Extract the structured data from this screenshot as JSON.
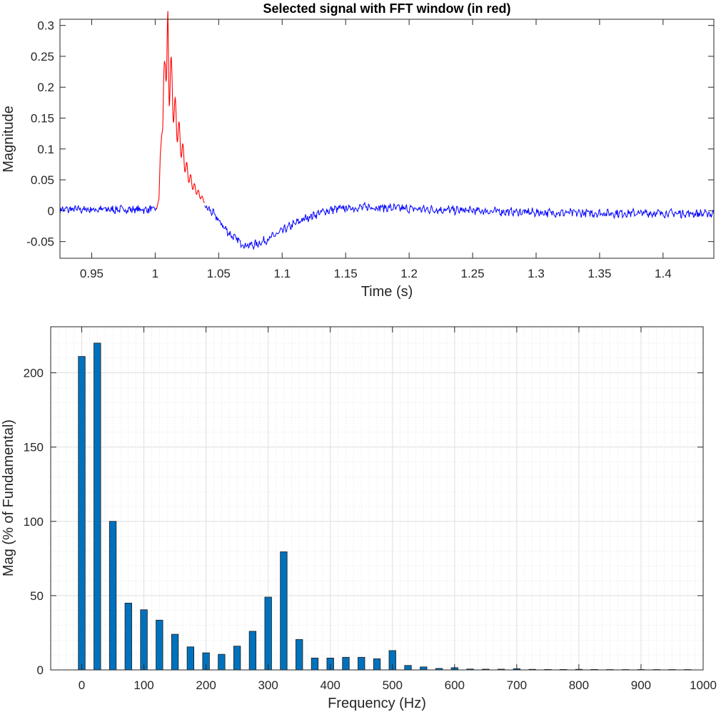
{
  "chart_data": [
    {
      "type": "line",
      "title": "Selected signal with FFT window (in red)",
      "xlabel": "Time (s)",
      "ylabel": "Magnitude",
      "xlim": [
        0.925,
        1.44
      ],
      "ylim": [
        -0.077,
        0.31
      ],
      "xticks": [
        "0.95",
        "1",
        "1.05",
        "1.1",
        "1.15",
        "1.2",
        "1.25",
        "1.3",
        "1.35",
        "1.4"
      ],
      "xtick_values": [
        0.95,
        1.0,
        1.05,
        1.1,
        1.15,
        1.2,
        1.25,
        1.3,
        1.35,
        1.4
      ],
      "yticks": [
        "-0.05",
        "0",
        "0.05",
        "0.1",
        "0.15",
        "0.2",
        "0.25",
        "0.3"
      ],
      "ytick_values": [
        -0.05,
        0,
        0.05,
        0.1,
        0.15,
        0.2,
        0.25,
        0.3
      ],
      "grid": false,
      "series": [
        {
          "color": "#0000ff",
          "x": [
            0.925,
            0.94,
            0.96,
            0.98,
            1.0,
            1.003,
            1.035,
            1.04,
            1.045,
            1.05,
            1.055,
            1.06,
            1.065,
            1.07,
            1.075,
            1.08,
            1.09,
            1.1,
            1.11,
            1.12,
            1.13,
            1.14,
            1.15,
            1.16,
            1.17,
            1.18,
            1.2,
            1.25,
            1.3,
            1.35,
            1.4,
            1.44
          ],
          "y": [
            0.002,
            0.002,
            0.002,
            0.002,
            0.002,
            0.002,
            0.012,
            0.006,
            -0.003,
            -0.016,
            -0.029,
            -0.04,
            -0.048,
            -0.055,
            -0.056,
            -0.054,
            -0.045,
            -0.033,
            -0.021,
            -0.011,
            -0.003,
            0.002,
            0.004,
            0.005,
            0.006,
            0.005,
            0.003,
            0.0,
            -0.003,
            -0.004,
            -0.004,
            -0.005
          ]
        },
        {
          "color": "#ff0000",
          "x": [
            1.001,
            1.003,
            1.004,
            1.005,
            1.006,
            1.007,
            1.008,
            1.009,
            1.01,
            1.011,
            1.012,
            1.013,
            1.014,
            1.015,
            1.017,
            1.02,
            1.023,
            1.026,
            1.03,
            1.035,
            1.039
          ],
          "y": [
            0.002,
            0.02,
            0.09,
            0.12,
            0.135,
            0.2,
            0.28,
            0.22,
            0.278,
            0.2,
            0.236,
            0.2,
            0.18,
            0.165,
            0.14,
            0.11,
            0.08,
            0.058,
            0.04,
            0.025,
            0.015
          ]
        }
      ]
    },
    {
      "type": "bar",
      "title": "",
      "xlabel": "Frequency (Hz)",
      "ylabel": "Mag (% of Fundamental)",
      "xlim": [
        -50,
        1000
      ],
      "ylim": [
        0,
        231
      ],
      "xticks": [
        "0",
        "100",
        "200",
        "300",
        "400",
        "500",
        "600",
        "700",
        "800",
        "900",
        "1000"
      ],
      "xtick_values": [
        0,
        100,
        200,
        300,
        400,
        500,
        600,
        700,
        800,
        900,
        1000
      ],
      "yticks": [
        "0",
        "50",
        "100",
        "150",
        "200"
      ],
      "ytick_values": [
        0,
        50,
        100,
        150,
        200
      ],
      "grid": true,
      "minor_grid": true,
      "color": "#0072bd",
      "x": [
        0,
        25,
        50,
        75,
        100,
        125,
        150,
        175,
        200,
        225,
        250,
        275,
        300,
        325,
        350,
        375,
        400,
        425,
        450,
        475,
        500,
        525,
        550,
        575,
        600,
        625,
        650,
        675,
        700,
        725,
        750,
        775,
        800,
        825,
        850,
        875,
        900,
        925,
        950,
        975
      ],
      "values": [
        211,
        220,
        100,
        45,
        40.5,
        33.5,
        24,
        15.5,
        11.5,
        10.5,
        16,
        26,
        49,
        79.5,
        20.5,
        8,
        8,
        8.5,
        8.5,
        7.5,
        13,
        3,
        2,
        1,
        1.5,
        0.6,
        0.5,
        0.5,
        0.8,
        0.4,
        0.3,
        0.3,
        0.4,
        0.3,
        0.2,
        0.2,
        0.2,
        0.2,
        0.2,
        0.1
      ]
    }
  ]
}
